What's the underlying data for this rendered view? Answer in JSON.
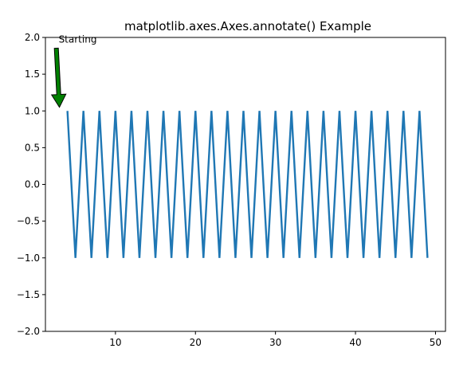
{
  "chart_data": {
    "type": "line",
    "title": "matplotlib.axes.Axes.annotate() Example",
    "xlabel": "",
    "ylabel": "",
    "xlim": [
      1.25,
      51.25
    ],
    "ylim": [
      -2.0,
      2.0
    ],
    "x_ticks": [
      10,
      20,
      30,
      40,
      50
    ],
    "x_tick_labels": [
      "10",
      "20",
      "30",
      "40",
      "50"
    ],
    "y_ticks": [
      -2.0,
      -1.5,
      -1.0,
      -0.5,
      0.0,
      0.5,
      1.0,
      1.5,
      2.0
    ],
    "y_tick_labels": [
      "−2.0",
      "−1.5",
      "−1.0",
      "−0.5",
      "0.0",
      "0.5",
      "1.0",
      "1.5",
      "2.0"
    ],
    "grid": false,
    "legend": "none",
    "series": [
      {
        "color": "#1f77b4",
        "x": [
          4,
          5,
          6,
          7,
          8,
          9,
          10,
          11,
          12,
          13,
          14,
          15,
          16,
          17,
          18,
          19,
          20,
          21,
          22,
          23,
          24,
          25,
          26,
          27,
          28,
          29,
          30,
          31,
          32,
          33,
          34,
          35,
          36,
          37,
          38,
          39,
          40,
          41,
          42,
          43,
          44,
          45,
          46,
          47,
          48,
          49
        ],
        "y": [
          1,
          -1,
          1,
          -1,
          1,
          -1,
          1,
          -1,
          1,
          -1,
          1,
          -1,
          1,
          -1,
          1,
          -1,
          1,
          -1,
          1,
          -1,
          1,
          -1,
          1,
          -1,
          1,
          -1,
          1,
          -1,
          1,
          -1,
          1,
          -1,
          1,
          -1,
          1,
          -1,
          1,
          -1,
          1,
          -1,
          1,
          -1,
          1,
          -1,
          1,
          -1
        ]
      }
    ],
    "annotations": [
      {
        "text": "Starting",
        "xy": [
          3,
          1.05
        ],
        "xytext": [
          3,
          1.8
        ],
        "arrow_color": "#008000"
      }
    ]
  }
}
